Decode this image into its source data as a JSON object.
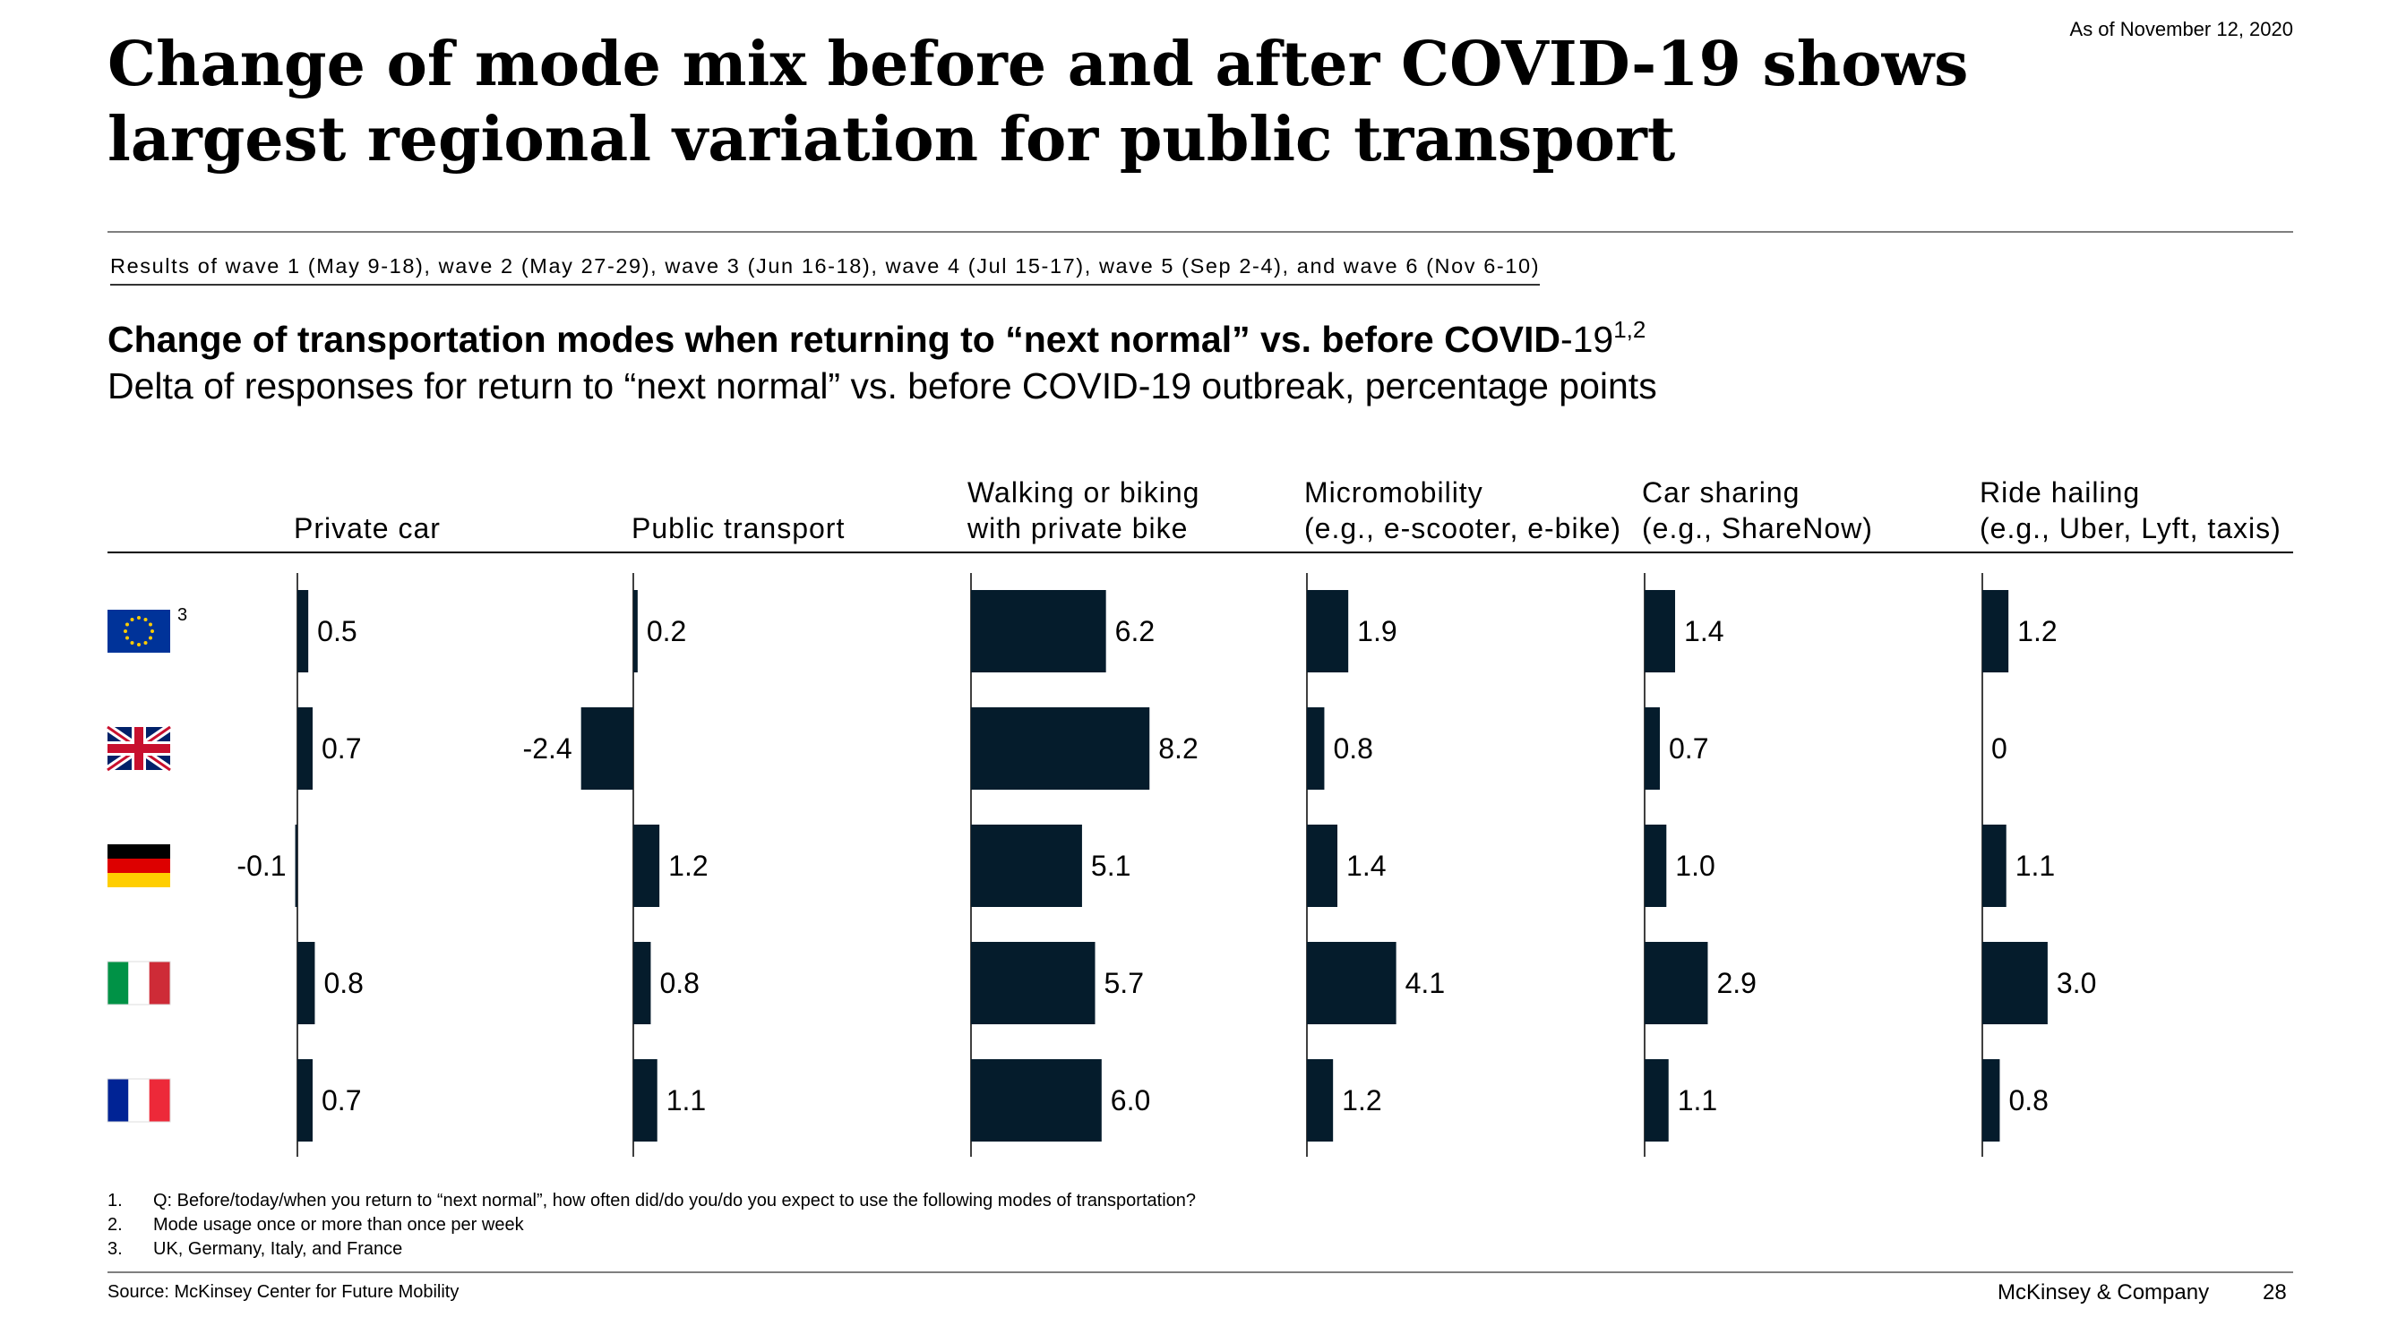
{
  "header": {
    "title_line1": "Change of mode mix before and after COVID-19 shows",
    "title_line2": "largest regional variation for public transport",
    "as_of": "As of November 12, 2020",
    "wave_text": "Results of wave 1 (May 9-18), wave 2 (May 27-29), wave 3 (Jun 16-18), wave 4 (Jul 15-17), wave 5 (Sep 2-4), and wave 6 (Nov 6-10)"
  },
  "subtitle": {
    "bold": "Change of transportation modes when returning to “next normal” vs. before COVID",
    "bold_tail": "-19",
    "sup": "1,2",
    "normal": "Delta of responses for return to “next normal” vs. before COVID-19 outbreak, percentage points"
  },
  "chart_data": {
    "type": "bar",
    "orientation": "horizontal",
    "categories": [
      "European Union",
      "United Kingdom",
      "Germany",
      "Italy",
      "France"
    ],
    "category_footnote": [
      "3",
      "",
      "",
      "",
      ""
    ],
    "series": [
      {
        "name": "Private car",
        "header": [
          "",
          "Private car"
        ],
        "values": [
          0.5,
          0.7,
          -0.1,
          0.8,
          0.7
        ],
        "labels": [
          "0.5",
          "0.7",
          "-0.1",
          "0.8",
          "0.7"
        ]
      },
      {
        "name": "Public transport",
        "header": [
          "",
          "Public transport"
        ],
        "values": [
          0.2,
          -2.4,
          1.2,
          0.8,
          1.1
        ],
        "labels": [
          "0.2",
          "-2.4",
          "1.2",
          "0.8",
          "1.1"
        ]
      },
      {
        "name": "Walking or biking with private bike",
        "header": [
          "Walking or biking",
          "with private bike"
        ],
        "values": [
          6.2,
          8.2,
          5.1,
          5.7,
          6.0
        ],
        "labels": [
          "6.2",
          "8.2",
          "5.1",
          "5.7",
          "6.0"
        ]
      },
      {
        "name": "Micromobility (e.g., e-scooter, e-bike)",
        "header": [
          "Micromobility",
          "(e.g., e-scooter, e-bike)"
        ],
        "values": [
          1.9,
          0.8,
          1.4,
          4.1,
          1.2
        ],
        "labels": [
          "1.9",
          "0.8",
          "1.4",
          "4.1",
          "1.2"
        ]
      },
      {
        "name": "Car sharing (e.g., ShareNow)",
        "header": [
          "Car sharing",
          "(e.g., ShareNow)"
        ],
        "values": [
          1.4,
          0.7,
          1.0,
          2.9,
          1.1
        ],
        "labels": [
          "1.4",
          "0.7",
          "1.0",
          "2.9",
          "1.1"
        ]
      },
      {
        "name": "Ride hailing (e.g., Uber, Lyft, taxis)",
        "header": [
          "Ride hailing",
          "(e.g., Uber, Lyft, taxis)"
        ],
        "values": [
          1.2,
          0,
          1.1,
          3.0,
          0.8
        ],
        "labels": [
          "1.2",
          "0",
          "1.1",
          "3.0",
          "0.8"
        ]
      }
    ],
    "bar_color": "#051c2c"
  },
  "flags": [
    "eu-flag-icon",
    "uk-flag-icon",
    "germany-flag-icon",
    "italy-flag-icon",
    "france-flag-icon"
  ],
  "footnotes": [
    {
      "num": "1.",
      "text": "Q: Before/today/when you return to “next normal”, how often did/do you/do you expect to use the following modes of transportation?"
    },
    {
      "num": "2.",
      "text": "Mode usage once or more than once per week"
    },
    {
      "num": "3.",
      "text": "UK, Germany, Italy, and France"
    }
  ],
  "footer": {
    "source": "Source: McKinsey Center for Future Mobility",
    "brand": "McKinsey & Company",
    "page": "28"
  }
}
